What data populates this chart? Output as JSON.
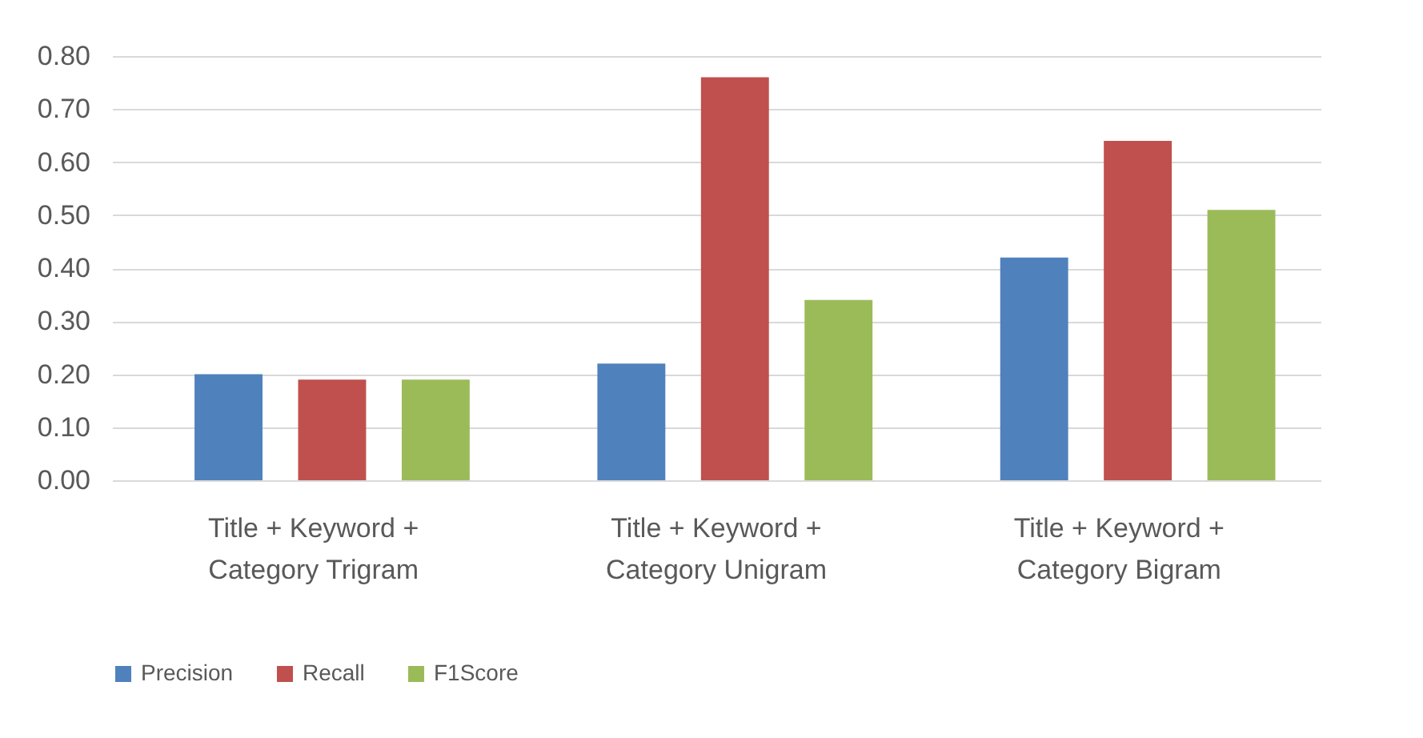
{
  "chart_data": {
    "type": "bar",
    "categories": [
      "Title + Keyword + Category Trigram",
      "Title + Keyword + Category Unigram",
      "Title + Keyword + Category Bigram"
    ],
    "series": [
      {
        "name": "Precision",
        "color": "#4f81bd",
        "values": [
          0.2,
          0.22,
          0.42
        ]
      },
      {
        "name": "Recall",
        "color": "#c0504d",
        "values": [
          0.19,
          0.76,
          0.64
        ]
      },
      {
        "name": "F1Score",
        "color": "#9bbb59",
        "values": [
          0.19,
          0.34,
          0.51
        ]
      }
    ],
    "ylim": [
      0,
      0.8
    ],
    "yticks": [
      {
        "value": 0,
        "label": "0.00"
      },
      {
        "value": 0.1,
        "label": "0.10"
      },
      {
        "value": 0.2,
        "label": "0.20"
      },
      {
        "value": 0.3,
        "label": "0.30"
      },
      {
        "value": 0.4,
        "label": "0.40"
      },
      {
        "value": 0.5,
        "label": "0.50"
      },
      {
        "value": 0.6,
        "label": "0.60"
      },
      {
        "value": 0.7,
        "label": "0.70"
      },
      {
        "value": 0.8,
        "label": "0.80"
      }
    ],
    "grid": "y",
    "legend": "bottom"
  }
}
